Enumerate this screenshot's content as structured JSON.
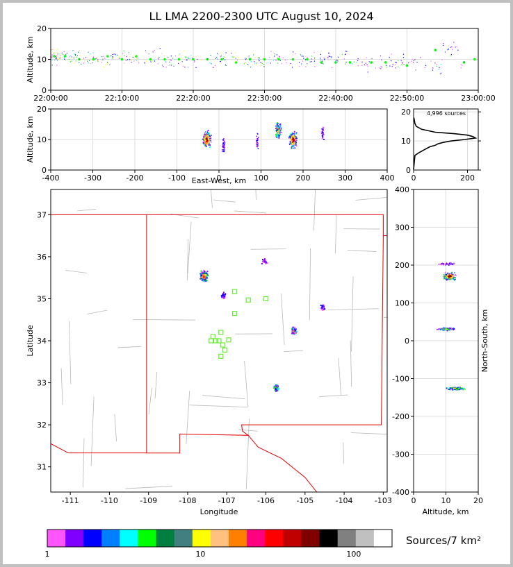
{
  "title": "LL LMA 2200-2300 UTC August 10, 2024",
  "colorbar_label": "Sources/7 km²",
  "chart_data": [
    {
      "id": "time-altitude",
      "type": "scatter",
      "ylabel": "Altitude, km",
      "xlim": [
        "22:00:00",
        "23:00:00"
      ],
      "ylim": [
        0,
        20
      ],
      "x_ticks": [
        "22:00:00",
        "22:10:00",
        "22:20:00",
        "22:30:00",
        "22:40:00",
        "22:50:00",
        "23:00:00"
      ],
      "y_ticks": [
        0,
        10,
        20
      ],
      "grid": true,
      "series": [
        {
          "x": [
            "22:00:30",
            "22:02:00",
            "22:04:00",
            "22:06:00",
            "22:08:00",
            "22:10:00",
            "22:12:00",
            "22:14:00",
            "22:16:00",
            "22:18:00",
            "22:20:00",
            "22:22:00",
            "22:24:00",
            "22:26:00",
            "22:28:00",
            "22:30:00",
            "22:32:00",
            "22:34:00",
            "22:36:00",
            "22:38:00",
            "22:40:00",
            "22:42:00",
            "22:45:00",
            "22:47:00",
            "22:50:00",
            "22:54:00",
            "22:58:00",
            "22:59:30"
          ],
          "y": [
            11,
            11,
            10,
            10,
            11,
            10,
            11,
            10,
            10,
            10,
            10,
            10,
            10,
            9,
            10,
            10,
            10,
            10,
            10,
            9,
            9,
            9,
            9,
            9,
            8,
            13,
            9,
            10
          ]
        }
      ]
    },
    {
      "id": "east-west-altitude",
      "type": "heatmap",
      "xlabel": "East-West, km",
      "ylabel": "Altitude, km",
      "xlim": [
        -400,
        400
      ],
      "ylim": [
        0,
        20
      ],
      "x_ticks": [
        -400,
        -300,
        -200,
        -100,
        0,
        100,
        200,
        300,
        400
      ],
      "y_ticks": [
        0,
        10,
        20
      ],
      "grid": true,
      "clusters": [
        {
          "x": -30,
          "y": 10,
          "intensity": "high"
        },
        {
          "x": 10,
          "y": 8,
          "intensity": "low"
        },
        {
          "x": 90,
          "y": 9,
          "intensity": "low"
        },
        {
          "x": 140,
          "y": 13,
          "intensity": "medium"
        },
        {
          "x": 175,
          "y": 10,
          "intensity": "high"
        },
        {
          "x": 245,
          "y": 12,
          "intensity": "low"
        }
      ]
    },
    {
      "id": "altitude-histogram",
      "type": "line",
      "annotation": "4,996 sources",
      "xlim": [
        0,
        240
      ],
      "ylim": [
        0,
        21
      ],
      "x_ticks": [
        0,
        200
      ],
      "y_ticks": [
        0,
        10,
        20
      ],
      "grid": true,
      "series": [
        {
          "altitude": [
            0.2,
            5,
            6,
            7,
            8,
            8.5,
            9,
            9.5,
            10,
            10.5,
            11,
            11.5,
            12,
            12.5,
            13,
            14,
            15,
            16,
            17,
            18
          ],
          "count": [
            0,
            5,
            20,
            40,
            60,
            80,
            90,
            110,
            140,
            190,
            230,
            220,
            200,
            150,
            80,
            30,
            10,
            5,
            3,
            1
          ]
        }
      ]
    },
    {
      "id": "plan-view",
      "type": "heatmap",
      "xlabel": "Longitude",
      "ylabel": "Latitude",
      "xlim": [
        -111.5,
        -102.9
      ],
      "ylim": [
        30.4,
        37.6
      ],
      "x_ticks": [
        -111,
        -110,
        -109,
        -108,
        -107,
        -106,
        -105,
        -104,
        -103
      ],
      "y_ticks": [
        31,
        32,
        33,
        34,
        35,
        36,
        37
      ],
      "clusters": [
        {
          "lon": -107.6,
          "lat": 35.55,
          "intensity": "high"
        },
        {
          "lon": -106.05,
          "lat": 35.9,
          "intensity": "low"
        },
        {
          "lon": -105.3,
          "lat": 34.25,
          "intensity": "medium"
        },
        {
          "lon": -105.75,
          "lat": 32.9,
          "intensity": "medium"
        },
        {
          "lon": -107.1,
          "lat": 35.08,
          "intensity": "low"
        },
        {
          "lon": -104.55,
          "lat": 34.82,
          "intensity": "low"
        }
      ],
      "stations": [
        {
          "lon": -106.8,
          "lat": 35.17
        },
        {
          "lon": -106.45,
          "lat": 34.97
        },
        {
          "lon": -106.0,
          "lat": 35.0
        },
        {
          "lon": -106.8,
          "lat": 34.65
        },
        {
          "lon": -107.35,
          "lat": 34.1
        },
        {
          "lon": -107.15,
          "lat": 34.2
        },
        {
          "lon": -107.4,
          "lat": 34.0
        },
        {
          "lon": -107.2,
          "lat": 34.0
        },
        {
          "lon": -106.95,
          "lat": 34.02
        },
        {
          "lon": -107.1,
          "lat": 33.9
        },
        {
          "lon": -107.05,
          "lat": 33.78
        },
        {
          "lon": -107.15,
          "lat": 33.63
        },
        {
          "lon": -107.28,
          "lat": 34.0
        }
      ]
    },
    {
      "id": "north-south-altitude",
      "type": "heatmap",
      "xlabel": "Altitude, km",
      "ylabel": "North-South, km",
      "xlim": [
        0,
        20
      ],
      "ylim": [
        -400,
        400
      ],
      "x_ticks": [
        0,
        10,
        20
      ],
      "y_ticks": [
        -400,
        -300,
        -200,
        -100,
        0,
        100,
        200,
        300,
        400
      ],
      "grid": true,
      "clusters": [
        {
          "alt": 11,
          "ns": 172,
          "intensity": "high"
        },
        {
          "alt": 10,
          "ns": 205,
          "intensity": "low"
        },
        {
          "alt": 10,
          "ns": 32,
          "intensity": "medium"
        },
        {
          "alt": 13,
          "ns": -125,
          "intensity": "medium"
        }
      ]
    },
    {
      "id": "colorbar",
      "type": "heatmap",
      "tick_labels": [
        "1",
        "10",
        "100"
      ],
      "colors": [
        "#ff55ff",
        "#8000ff",
        "#0000ff",
        "#0080ff",
        "#00ffff",
        "#00ff00",
        "#008040",
        "#408080",
        "#ffff00",
        "#ffc080",
        "#ff8000",
        "#ff0080",
        "#ff0000",
        "#c00000",
        "#800000",
        "#000000",
        "#808080",
        "#c0c0c0",
        "#ffffff"
      ]
    }
  ]
}
